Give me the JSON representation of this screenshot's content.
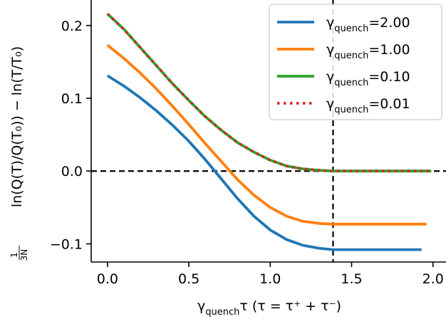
{
  "chart_data": {
    "type": "line",
    "xlabel": {
      "main": "γ",
      "sub": "quench",
      "rest": "τ (τ = τ⁺ + τ⁻)"
    },
    "ylabel": {
      "frac_num": "1",
      "frac_den": "3N",
      "rest": "ln(Q(T)/Q(T₀)) − ln(T/T₀)"
    },
    "xlim": [
      -0.1,
      2.08
    ],
    "ylim": [
      -0.125,
      0.235
    ],
    "xticks": [
      0.0,
      0.5,
      1.0,
      1.5,
      2.0
    ],
    "xtick_labels": [
      "0.0",
      "0.5",
      "1.0",
      "1.5",
      "2.0"
    ],
    "yticks": [
      -0.1,
      0.0,
      0.1,
      0.2
    ],
    "ytick_labels": [
      "−0.1",
      "0.0",
      "0.1",
      "0.2"
    ],
    "hline": 0.0,
    "vline": 1.386,
    "grid": false,
    "legend_position": "top-right",
    "series": [
      {
        "legend_prefix": "γ",
        "legend_sub": "quench",
        "legend_value": "=2.00",
        "color": "#1f77b4",
        "style": "solid",
        "points": [
          [
            0.0,
            0.131
          ],
          [
            0.1,
            0.117
          ],
          [
            0.2,
            0.101
          ],
          [
            0.3,
            0.083
          ],
          [
            0.4,
            0.063
          ],
          [
            0.5,
            0.041
          ],
          [
            0.6,
            0.016
          ],
          [
            0.7,
            -0.011
          ],
          [
            0.8,
            -0.038
          ],
          [
            0.9,
            -0.062
          ],
          [
            1.0,
            -0.081
          ],
          [
            1.1,
            -0.094
          ],
          [
            1.2,
            -0.102
          ],
          [
            1.3,
            -0.106
          ],
          [
            1.386,
            -0.108
          ],
          [
            1.5,
            -0.108
          ],
          [
            1.75,
            -0.108
          ],
          [
            1.93,
            -0.108
          ]
        ]
      },
      {
        "legend_prefix": "γ",
        "legend_sub": "quench",
        "legend_value": "=1.00",
        "color": "#ff7f0e",
        "style": "solid",
        "points": [
          [
            0.0,
            0.173
          ],
          [
            0.1,
            0.155
          ],
          [
            0.2,
            0.135
          ],
          [
            0.3,
            0.113
          ],
          [
            0.4,
            0.089
          ],
          [
            0.5,
            0.064
          ],
          [
            0.6,
            0.038
          ],
          [
            0.7,
            0.013
          ],
          [
            0.8,
            -0.012
          ],
          [
            0.9,
            -0.033
          ],
          [
            1.0,
            -0.05
          ],
          [
            1.1,
            -0.062
          ],
          [
            1.2,
            -0.069
          ],
          [
            1.3,
            -0.072
          ],
          [
            1.386,
            -0.073
          ],
          [
            1.5,
            -0.073
          ],
          [
            1.75,
            -0.073
          ],
          [
            1.96,
            -0.073
          ]
        ]
      },
      {
        "legend_prefix": "γ",
        "legend_sub": "quench",
        "legend_value": "=0.10",
        "color": "#2ca02c",
        "style": "solid",
        "points": [
          [
            0.0,
            0.216
          ],
          [
            0.1,
            0.195
          ],
          [
            0.2,
            0.17
          ],
          [
            0.3,
            0.145
          ],
          [
            0.4,
            0.12
          ],
          [
            0.5,
            0.097
          ],
          [
            0.6,
            0.075
          ],
          [
            0.7,
            0.056
          ],
          [
            0.8,
            0.039
          ],
          [
            0.9,
            0.026
          ],
          [
            1.0,
            0.015
          ],
          [
            1.1,
            0.007
          ],
          [
            1.2,
            0.003
          ],
          [
            1.3,
            0.001
          ],
          [
            1.386,
            0.0
          ],
          [
            1.5,
            0.0
          ],
          [
            1.75,
            0.0
          ],
          [
            1.99,
            0.0
          ]
        ]
      },
      {
        "legend_prefix": "γ",
        "legend_sub": "quench",
        "legend_value": "=0.01",
        "color": "#d62728",
        "style": "dotted",
        "points": [
          [
            0.0,
            0.216
          ],
          [
            0.1,
            0.195
          ],
          [
            0.2,
            0.17
          ],
          [
            0.3,
            0.145
          ],
          [
            0.4,
            0.12
          ],
          [
            0.5,
            0.097
          ],
          [
            0.6,
            0.075
          ],
          [
            0.7,
            0.056
          ],
          [
            0.8,
            0.039
          ],
          [
            0.9,
            0.026
          ],
          [
            1.0,
            0.015
          ],
          [
            1.1,
            0.007
          ],
          [
            1.2,
            0.003
          ],
          [
            1.3,
            0.001
          ],
          [
            1.386,
            0.0
          ],
          [
            1.5,
            0.0
          ],
          [
            1.75,
            0.0
          ],
          [
            2.0,
            0.0
          ]
        ]
      }
    ]
  }
}
